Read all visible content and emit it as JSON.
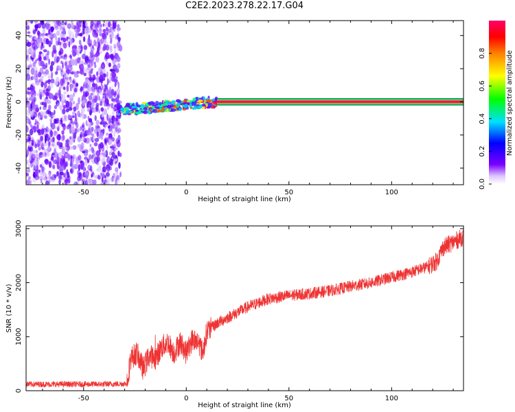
{
  "title": "C2E2.2023.278.22.17.G04",
  "chart_data": [
    {
      "type": "heatmap",
      "title": "",
      "xlabel": "Height of straight line (km)",
      "ylabel": "Frequency (Hz)",
      "xlim": [
        -78,
        135
      ],
      "ylim": [
        -50,
        49
      ],
      "xticks": [
        -50,
        0,
        50,
        100
      ],
      "yticks": [
        -40,
        -20,
        0,
        20,
        40
      ],
      "colorbar": {
        "label": "Normalized spectral amplitude",
        "range": [
          0,
          1
        ],
        "ticks": [
          0.0,
          0.2,
          0.4,
          0.6,
          0.8
        ]
      },
      "regions": [
        {
          "description_x": [
            -78,
            -32
          ],
          "frequency_range": [
            -50,
            49
          ],
          "amplitude": "low (0.0-0.2), scattered noise"
        },
        {
          "description_x": [
            -32,
            15
          ],
          "frequency_center": [
            -5,
            0
          ],
          "amplitude": "mixed 0.2-0.9"
        },
        {
          "description_x": [
            15,
            135
          ],
          "frequency_center": 0,
          "amplitude": "high (~0.9-1.0)"
        }
      ]
    },
    {
      "type": "line",
      "title": "",
      "xlabel": "Height of straight line (km)",
      "ylabel": "SNR (10 * v/v)",
      "xlim": [
        -78,
        135
      ],
      "ylim": [
        0,
        3050
      ],
      "xticks": [
        -50,
        0,
        50,
        100
      ],
      "yticks": [
        0,
        1000,
        2000,
        3000
      ],
      "color": "#ee3333",
      "series": [
        {
          "x": [
            -78,
            -60,
            -40,
            -29,
            -27,
            -24,
            -21,
            -18,
            -15,
            -12,
            -9,
            -6,
            -3,
            0,
            3,
            6,
            8,
            10,
            12,
            15,
            20,
            25,
            30,
            40,
            50,
            60,
            70,
            80,
            90,
            100,
            110,
            118,
            122,
            125,
            130,
            135
          ],
          "values": [
            120,
            120,
            120,
            130,
            600,
            700,
            400,
            650,
            600,
            800,
            900,
            700,
            900,
            700,
            950,
            900,
            700,
            1100,
            1150,
            1250,
            1350,
            1450,
            1550,
            1700,
            1760,
            1800,
            1850,
            1930,
            2000,
            2100,
            2200,
            2300,
            2400,
            2650,
            2750,
            2850
          ]
        }
      ]
    }
  ]
}
